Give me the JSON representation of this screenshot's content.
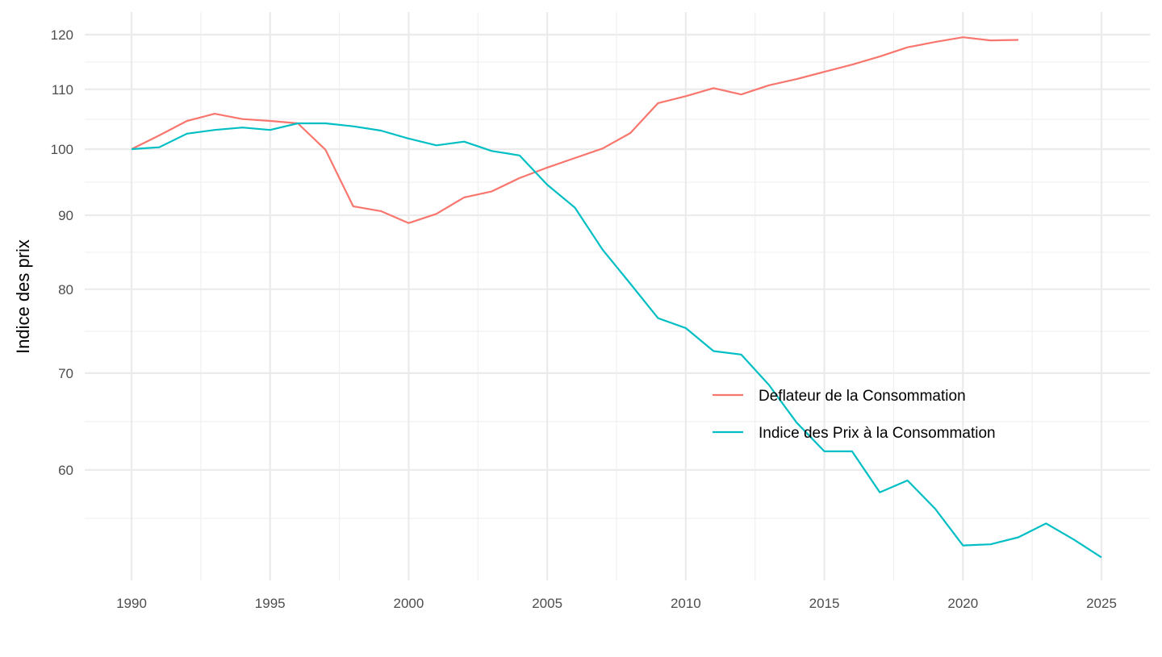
{
  "chart_data": {
    "type": "line",
    "title": "",
    "xlabel": "",
    "ylabel": "Indice des prix",
    "y_scale": "log",
    "xlim": [
      1988.3,
      2026.8
    ],
    "ylim": [
      51,
      123
    ],
    "x_ticks": [
      1990,
      1995,
      2000,
      2005,
      2010,
      2015,
      2020,
      2025
    ],
    "y_ticks": [
      60,
      70,
      80,
      90,
      100,
      110,
      120
    ],
    "grid": true,
    "legend_position": "inside-right",
    "series": [
      {
        "name": "Deflateur de la Consommation",
        "color": "#F8766D",
        "x": [
          1990,
          1991,
          1992,
          1993,
          1994,
          1995,
          1996,
          1997,
          1998,
          1999,
          2000,
          2001,
          2002,
          2003,
          2004,
          2005,
          2006,
          2007,
          2008,
          2009,
          2010,
          2011,
          2012,
          2013,
          2014,
          2015,
          2016,
          2017,
          2018,
          2019,
          2020,
          2021,
          2022
        ],
        "values": [
          100,
          102.2,
          104.6,
          105.8,
          104.9,
          104.6,
          104.2,
          99.9,
          91.3,
          90.6,
          88.9,
          90.2,
          92.6,
          93.5,
          95.5,
          97.1,
          98.6,
          100.1,
          102.6,
          107.6,
          108.8,
          110.2,
          109.1,
          110.7,
          111.8,
          113.1,
          114.4,
          115.9,
          117.6,
          118.6,
          119.5,
          118.9,
          119.0
        ]
      },
      {
        "name": "Indice des Prix à la Consommation",
        "color": "#00BFC4",
        "x": [
          1990,
          1991,
          1992,
          1993,
          1994,
          1995,
          1996,
          1997,
          1998,
          1999,
          2000,
          2001,
          2002,
          2003,
          2004,
          2005,
          2006,
          2007,
          2008,
          2009,
          2010,
          2011,
          2012,
          2013,
          2014,
          2015,
          2016,
          2017,
          2018,
          2019,
          2020,
          2021,
          2022,
          2023,
          2024,
          2025
        ],
        "values": [
          100,
          100.3,
          102.5,
          103.1,
          103.5,
          103.1,
          104.2,
          104.2,
          103.7,
          103.0,
          101.7,
          100.6,
          101.2,
          99.7,
          99.0,
          94.5,
          91.1,
          85.2,
          80.7,
          76.4,
          75.2,
          72.5,
          72.1,
          68.7,
          64.7,
          61.8,
          61.8,
          57.9,
          59.0,
          56.4,
          53.2,
          53.3,
          53.9,
          55.1,
          53.7,
          52.2
        ]
      }
    ]
  }
}
